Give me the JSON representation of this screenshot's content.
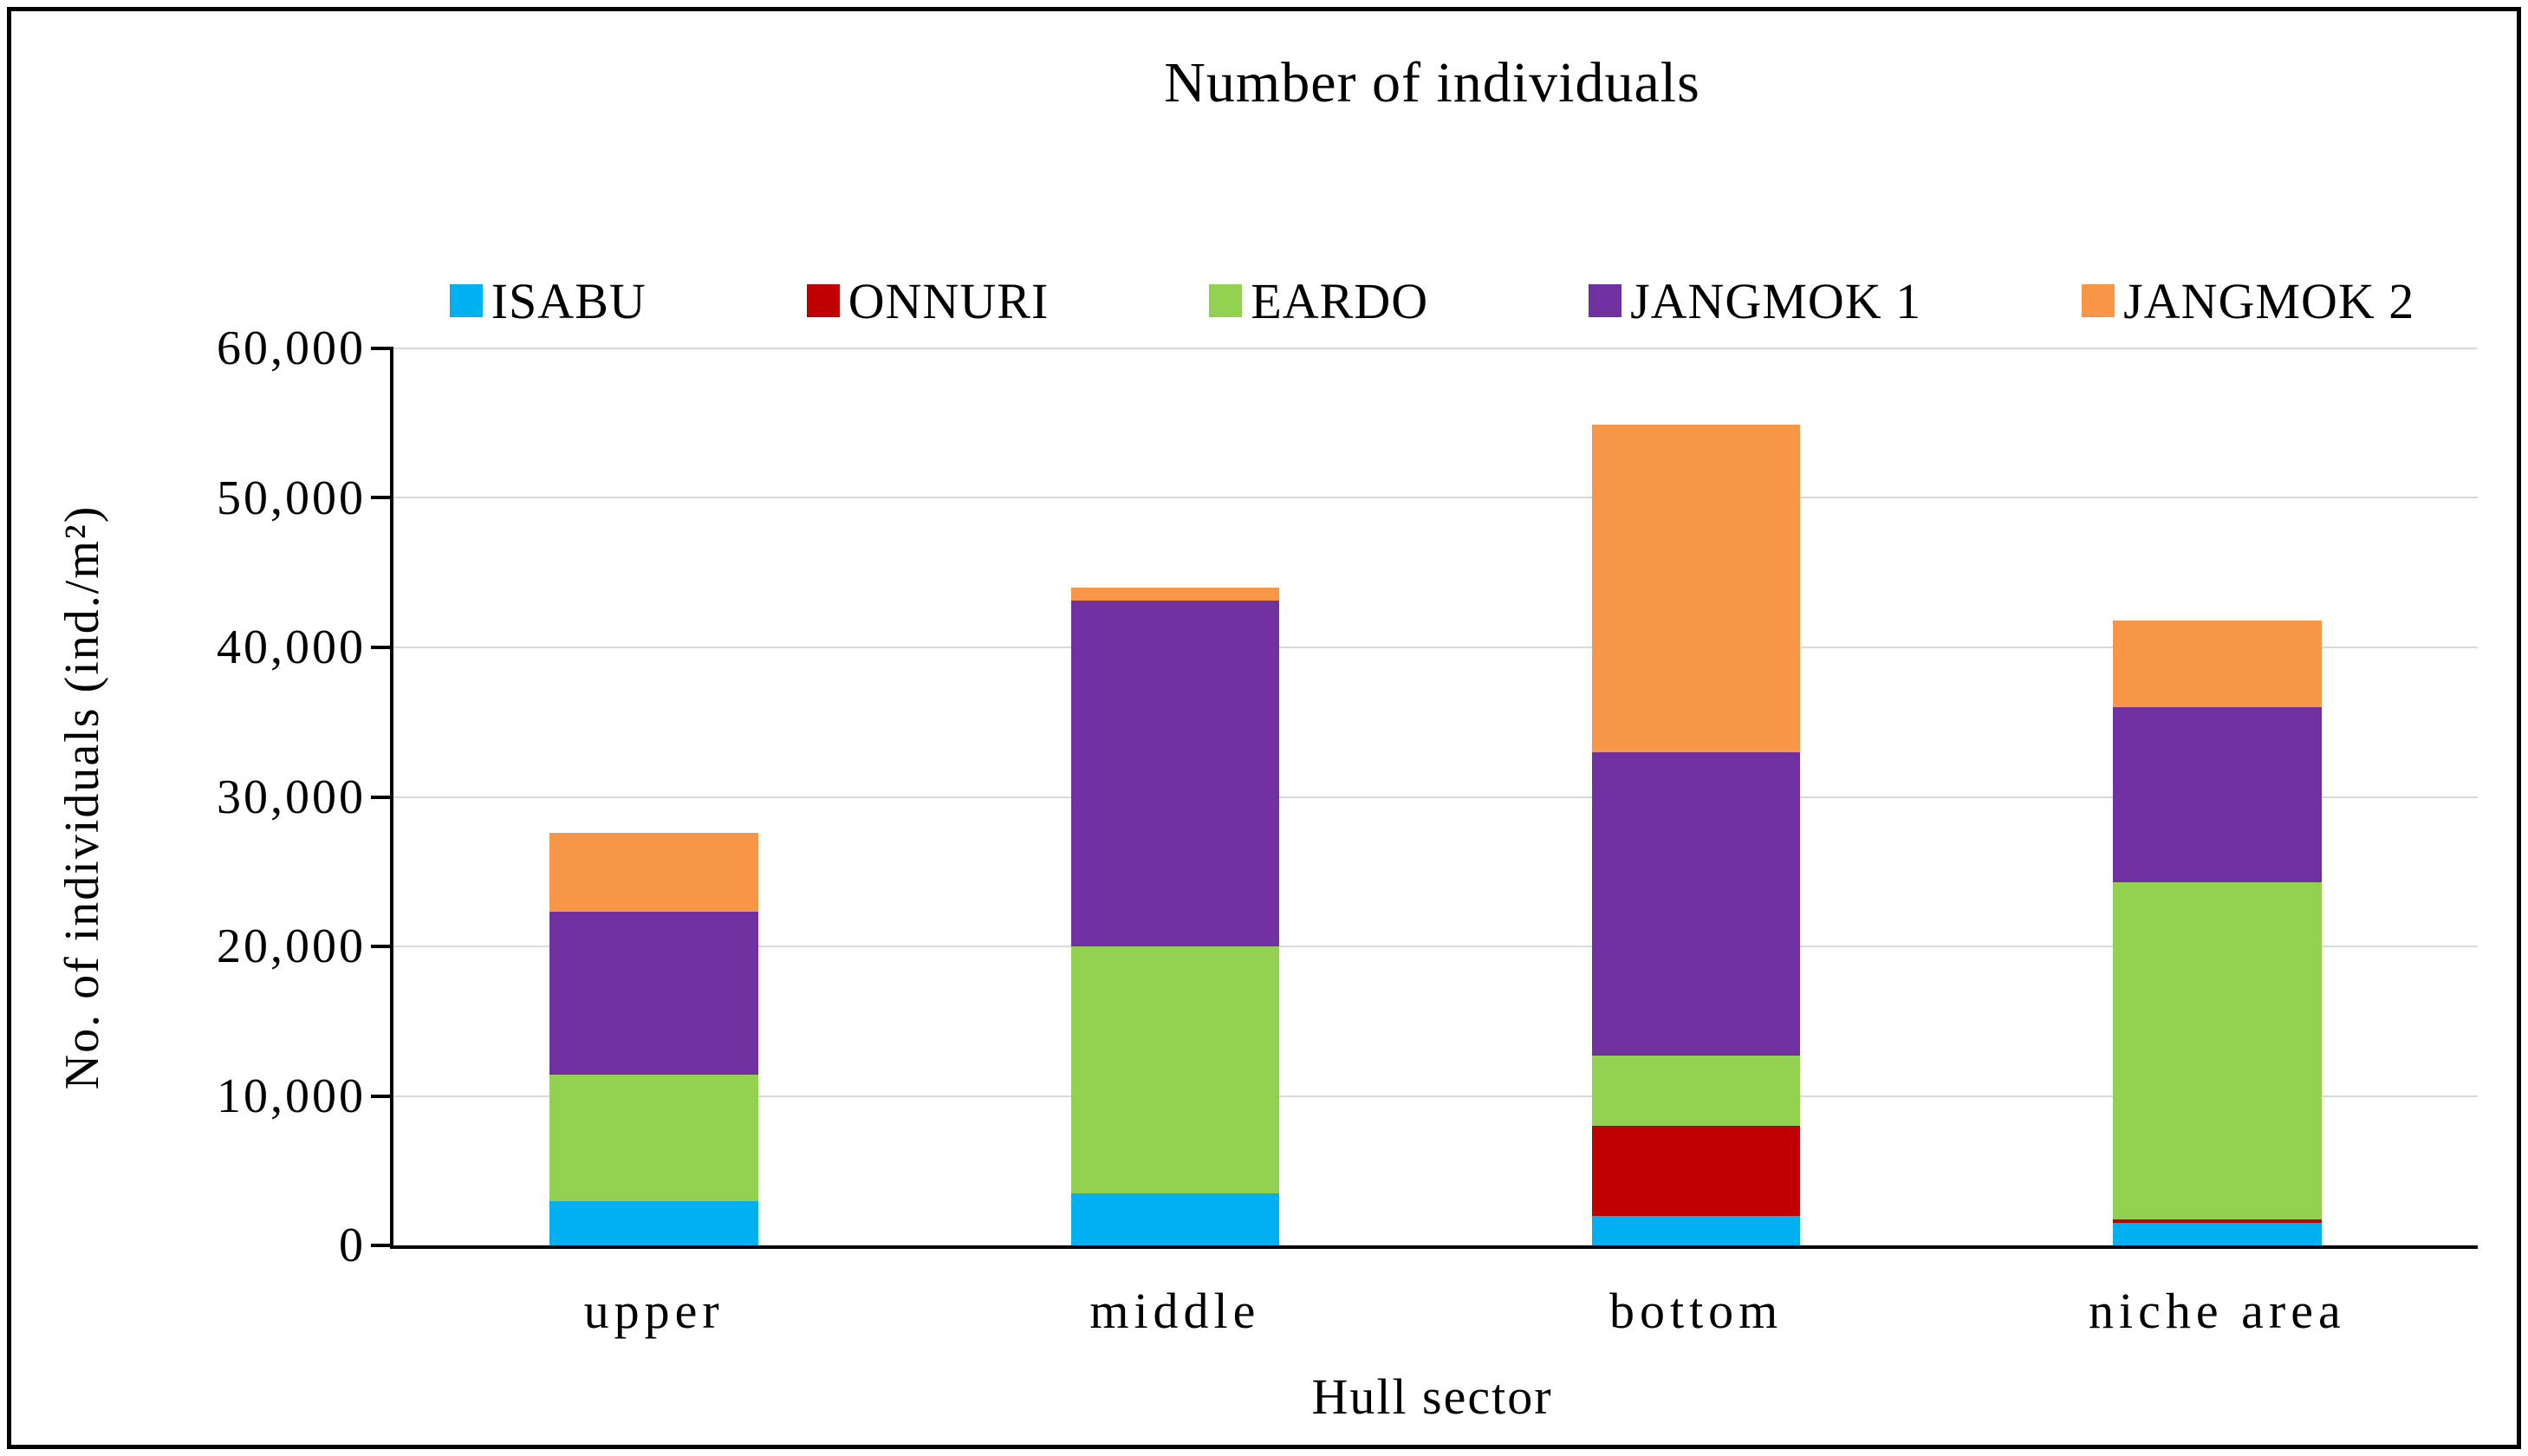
{
  "chart_data": {
    "type": "bar",
    "stacked": true,
    "title": "Number of individuals",
    "xlabel": "Hull sector",
    "ylabel": "No. of individuals (ind./m²)",
    "categories": [
      "upper",
      "middle",
      "bottom",
      "niche area"
    ],
    "series": [
      {
        "name": "ISABU",
        "color": "#00B0F0",
        "values": [
          2950,
          3500,
          2000,
          1500
        ]
      },
      {
        "name": "ONNURI",
        "color": "#C00000",
        "values": [
          0,
          0,
          6000,
          250
        ]
      },
      {
        "name": "EARDO",
        "color": "#92D050",
        "values": [
          8450,
          16500,
          4700,
          22550
        ]
      },
      {
        "name": "JANGMOK 1",
        "color": "#7030A0",
        "values": [
          10950,
          23150,
          20300,
          11700
        ]
      },
      {
        "name": "JANGMOK 2",
        "color": "#F79646",
        "values": [
          5250,
          850,
          21900,
          5800
        ]
      }
    ],
    "ylim": [
      0,
      60000
    ],
    "ytick_step": 10000,
    "ytick_labels": [
      "0",
      "10,000",
      "20,000",
      "30,000",
      "40,000",
      "50,000",
      "60,000"
    ],
    "grid": "horizontal",
    "gridline_color": "#D9D9D9",
    "axis_color": "#000000",
    "legend_position": "top"
  }
}
